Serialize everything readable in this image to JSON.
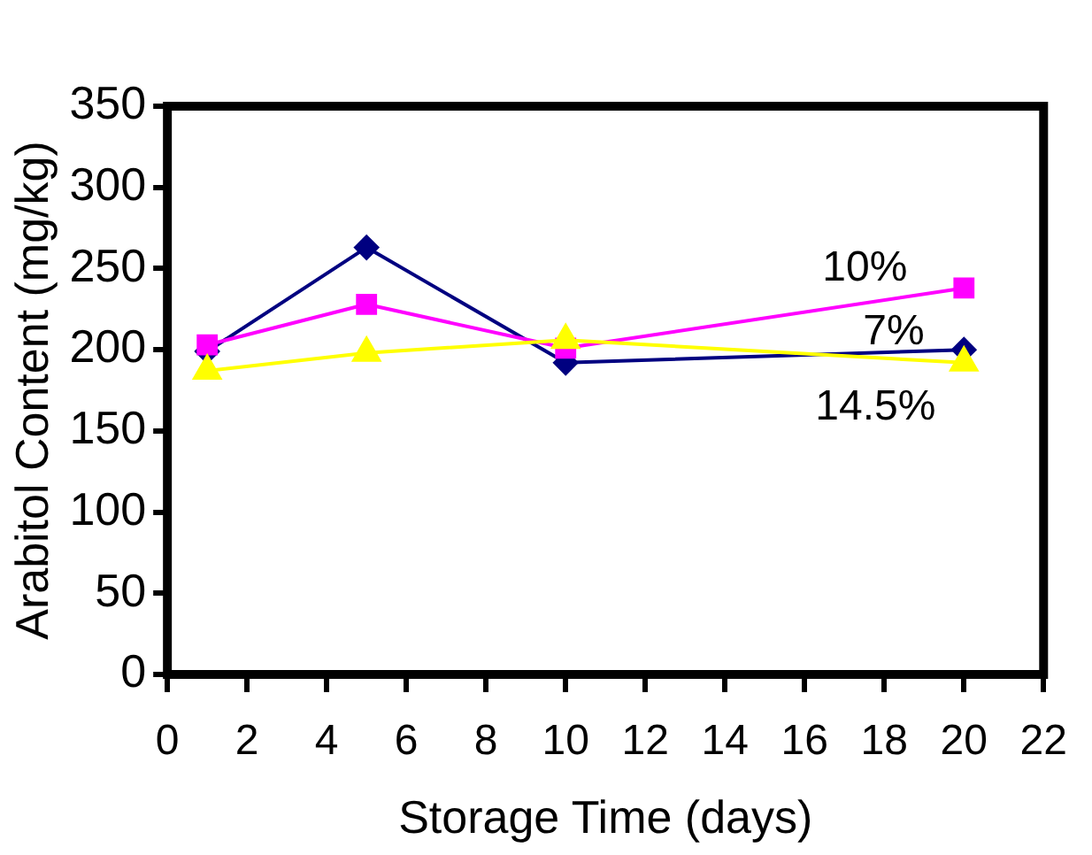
{
  "chart_data": {
    "type": "line",
    "xlabel": "Storage Time (days)",
    "ylabel": "Arabitol Content (mg/kg)",
    "x": [
      1,
      5,
      10,
      20
    ],
    "series": [
      {
        "name": "7%",
        "color": "#000080",
        "values": [
          199,
          263,
          192,
          200
        ],
        "marker": "diamond"
      },
      {
        "name": "10%",
        "color": "#ff00ff",
        "values": [
          203,
          228,
          201,
          238
        ],
        "marker": "square"
      },
      {
        "name": "14.5%",
        "color": "#ffff00",
        "values": [
          187,
          198,
          206,
          192
        ],
        "marker": "triangle"
      }
    ],
    "xlim": [
      0,
      22
    ],
    "xticks": [
      0,
      2,
      4,
      6,
      8,
      10,
      12,
      14,
      16,
      18,
      20,
      22
    ],
    "ylim": [
      0,
      350
    ],
    "yticks": [
      0,
      50,
      100,
      150,
      200,
      250,
      300,
      350
    ],
    "grid": false,
    "legend": false
  }
}
